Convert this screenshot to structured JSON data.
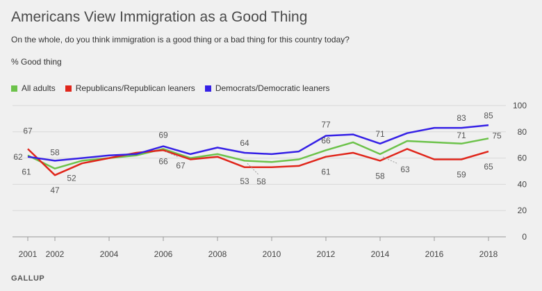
{
  "title": "Americans View Immigration as a Good Thing",
  "subtitle": "On the whole, do you think immigration is a good thing or a bad thing for this country today?",
  "unit_label": "% Good thing",
  "source": "GALLUP",
  "colors": {
    "all_adults": "#6cc24a",
    "republicans": "#e0261b",
    "democrats": "#3520e6",
    "grid": "#d8d8d8",
    "leader": "#9a9a9a"
  },
  "chart_data": {
    "type": "line",
    "title": "Americans View Immigration as a Good Thing",
    "ylabel": "% Good thing",
    "xlabel": "",
    "ylim": [
      0,
      100
    ],
    "yticks": [
      0,
      20,
      40,
      60,
      80,
      100
    ],
    "xticks": [
      2001,
      2002,
      2004,
      2006,
      2008,
      2010,
      2012,
      2014,
      2016,
      2018
    ],
    "xlim": [
      2001,
      2018
    ],
    "grid": true,
    "legend_position": "top-left",
    "x": [
      2001,
      2002,
      2003,
      2004,
      2005,
      2006,
      2007,
      2008,
      2009,
      2010,
      2011,
      2012,
      2013,
      2014,
      2015,
      2016,
      2017,
      2018
    ],
    "series": [
      {
        "name": "All adults",
        "color": "#6cc24a",
        "values": [
          62,
          52,
          58,
          60,
          62,
          67,
          60,
          63,
          58,
          57,
          59,
          66,
          72,
          63,
          73,
          72,
          71,
          75
        ]
      },
      {
        "name": "Republicans/Republican leaners",
        "color": "#e0261b",
        "values": [
          67,
          47,
          56,
          60,
          64,
          66,
          59,
          61,
          53,
          53,
          54,
          61,
          64,
          58,
          67,
          59,
          59,
          65
        ]
      },
      {
        "name": "Democrats/Democratic leaners",
        "color": "#3520e6",
        "values": [
          61,
          58,
          60,
          62,
          63,
          69,
          63,
          68,
          64,
          63,
          65,
          77,
          78,
          71,
          79,
          83,
          83,
          85
        ]
      }
    ],
    "data_labels": [
      {
        "text": "62",
        "year": 2001,
        "series": "All adults"
      },
      {
        "text": "67",
        "year": 2001,
        "series": "Republicans/Republican leaners"
      },
      {
        "text": "61",
        "year": 2001,
        "series": "Democrats/Democratic leaners"
      },
      {
        "text": "58",
        "year": 2002,
        "series": "Democrats/Democratic leaners"
      },
      {
        "text": "47",
        "year": 2002,
        "series": "Republicans/Republican leaners"
      },
      {
        "text": "52",
        "year": 2002,
        "series": "All adults"
      },
      {
        "text": "69",
        "year": 2006,
        "series": "Democrats/Democratic leaners"
      },
      {
        "text": "66",
        "year": 2006,
        "series": "Republicans/Republican leaners"
      },
      {
        "text": "67",
        "year": 2006,
        "series": "All adults"
      },
      {
        "text": "64",
        "year": 2009,
        "series": "Democrats/Democratic leaners"
      },
      {
        "text": "53",
        "year": 2009,
        "series": "Republicans/Republican leaners"
      },
      {
        "text": "58",
        "year": 2009,
        "series": "All adults"
      },
      {
        "text": "77",
        "year": 2012,
        "series": "Democrats/Democratic leaners"
      },
      {
        "text": "66",
        "year": 2012,
        "series": "All adults"
      },
      {
        "text": "61",
        "year": 2012,
        "series": "Republicans/Republican leaners"
      },
      {
        "text": "71",
        "year": 2014,
        "series": "Democrats/Democratic leaners"
      },
      {
        "text": "58",
        "year": 2014,
        "series": "Republicans/Republican leaners"
      },
      {
        "text": "63",
        "year": 2014,
        "series": "All adults"
      },
      {
        "text": "83",
        "year": 2017,
        "series": "Democrats/Democratic leaners"
      },
      {
        "text": "71",
        "year": 2017,
        "series": "All adults"
      },
      {
        "text": "59",
        "year": 2017,
        "series": "Republicans/Republican leaners"
      },
      {
        "text": "85",
        "year": 2018,
        "series": "Democrats/Democratic leaners"
      },
      {
        "text": "75",
        "year": 2018,
        "series": "All adults"
      },
      {
        "text": "65",
        "year": 2018,
        "series": "Republicans/Republican leaners"
      }
    ]
  }
}
